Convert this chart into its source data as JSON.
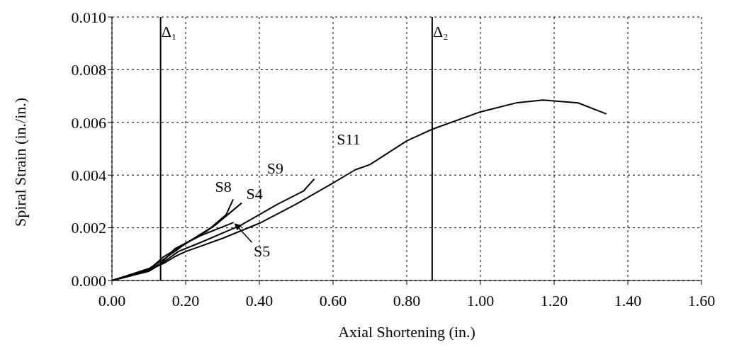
{
  "chart_data": {
    "type": "line",
    "xlabel": "Axial Shortening (in.)",
    "ylabel": "Spiral Strain (in./in.)",
    "xlim": [
      0,
      1.6
    ],
    "xticks": [
      {
        "value": 0,
        "label": "0.00"
      },
      {
        "value": 0.2,
        "label": "0.20"
      },
      {
        "value": 0.4,
        "label": "0.40"
      },
      {
        "value": 0.6,
        "label": "0.60"
      },
      {
        "value": 0.8,
        "label": "0.80"
      },
      {
        "value": 1,
        "label": "1.00"
      },
      {
        "value": 1.2,
        "label": "1.20"
      },
      {
        "value": 1.4,
        "label": "1.40"
      },
      {
        "value": 1.6,
        "label": "1.60"
      }
    ],
    "ylim": [
      0,
      0.01
    ],
    "yticks": [
      {
        "value": 0,
        "label": "0.000"
      },
      {
        "value": 0.002,
        "label": "0.002"
      },
      {
        "value": 0.004,
        "label": "0.004"
      },
      {
        "value": 0.006,
        "label": "0.006"
      },
      {
        "value": 0.008,
        "label": "0.008"
      },
      {
        "value": 0.01,
        "label": "0.010"
      }
    ],
    "grid": true,
    "marker": "none",
    "line_style": "solid",
    "series": [
      {
        "name": "S11",
        "color": "#000000",
        "x": [
          0,
          0.05,
          0.1,
          0.14,
          0.17,
          0.2,
          0.3,
          0.4,
          0.5,
          0.6,
          0.66,
          0.7,
          0.8,
          0.869,
          1.0,
          1.1,
          1.17,
          1.265,
          1.342
        ],
        "values": [
          0,
          0.00018,
          0.0004,
          0.00065,
          0.0009,
          0.0011,
          0.0016,
          0.00217,
          0.0029,
          0.0037,
          0.0042,
          0.0044,
          0.0053,
          0.00574,
          0.0064,
          0.00675,
          0.00685,
          0.00674,
          0.00632
        ]
      },
      {
        "name": "S9",
        "color": "#000000",
        "x": [
          0,
          0.1,
          0.14,
          0.18,
          0.25,
          0.35,
          0.45,
          0.52,
          0.549
        ],
        "values": [
          0,
          0.00042,
          0.0007,
          0.0011,
          0.0015,
          0.0021,
          0.0029,
          0.0034,
          0.00385
        ]
      },
      {
        "name": "S8",
        "color": "#000000",
        "x": [
          0,
          0.1,
          0.14,
          0.2,
          0.26,
          0.31,
          0.329
        ],
        "values": [
          0,
          0.00045,
          0.0008,
          0.0014,
          0.0019,
          0.0025,
          0.00308
        ]
      },
      {
        "name": "S4",
        "color": "#000000",
        "x": [
          0,
          0.1,
          0.14,
          0.2,
          0.28,
          0.352
        ],
        "values": [
          0,
          0.0004,
          0.0009,
          0.0014,
          0.0021,
          0.00294
        ]
      },
      {
        "name": "S5",
        "color": "#000000",
        "x": [
          0,
          0.1,
          0.13,
          0.17,
          0.24,
          0.33
        ],
        "values": [
          0,
          0.00035,
          0.0006,
          0.0012,
          0.0017,
          0.0022
        ]
      }
    ],
    "ref_lines": [
      {
        "axis": "x",
        "value": 0.132,
        "label": "Δ₁",
        "color": "#000000"
      },
      {
        "axis": "x",
        "value": 0.869,
        "label": "Δ₂",
        "color": "#000000"
      }
    ]
  }
}
